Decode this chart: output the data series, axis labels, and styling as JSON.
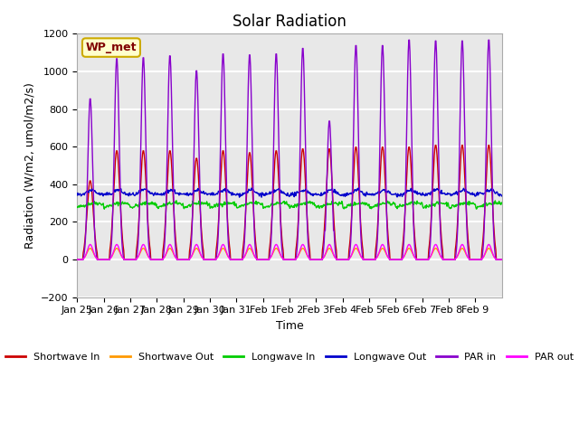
{
  "title": "Solar Radiation",
  "ylabel": "Radiation (W/m2, umol/m2/s)",
  "xlabel": "Time",
  "ylim": [
    -200,
    1200
  ],
  "yticks": [
    -200,
    0,
    200,
    400,
    600,
    800,
    1000,
    1200
  ],
  "x_labels": [
    "Jan 25",
    "Jan 26",
    "Jan 27",
    "Jan 28",
    "Jan 29",
    "Jan 30",
    "Jan 31",
    "Feb 1",
    "Feb 2",
    "Feb 3",
    "Feb 4",
    "Feb 5",
    "Feb 6",
    "Feb 7",
    "Feb 8",
    "Feb 9"
  ],
  "annotation": "WP_met",
  "plot_bg_color": "#e8e8e8",
  "grid_color": "white",
  "series": {
    "shortwave_in": {
      "color": "#cc0000",
      "label": "Shortwave In"
    },
    "shortwave_out": {
      "color": "#ff9900",
      "label": "Shortwave Out"
    },
    "longwave_in": {
      "color": "#00cc00",
      "label": "Longwave In"
    },
    "longwave_out": {
      "color": "#0000cc",
      "label": "Longwave Out"
    },
    "par_in": {
      "color": "#8800cc",
      "label": "PAR in"
    },
    "par_out": {
      "color": "#ff00ff",
      "label": "PAR out"
    }
  },
  "n_days": 16,
  "pts_per_day": 48
}
